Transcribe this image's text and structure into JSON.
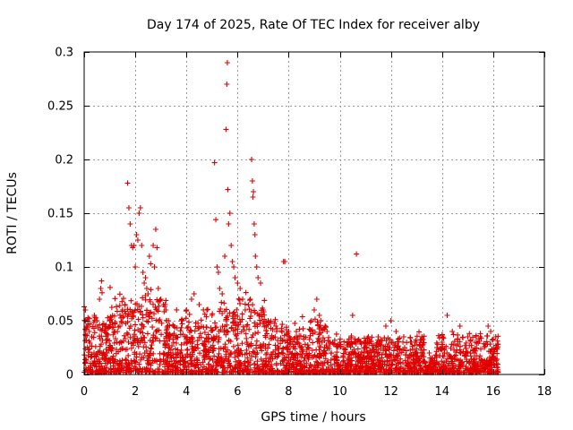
{
  "chart_data": {
    "type": "scatter",
    "title": "Day 174 of 2025, Rate Of TEC Index for receiver alby",
    "xlabel": "GPS time / hours",
    "ylabel": "ROTI / TECUs",
    "xlim": [
      0,
      18
    ],
    "ylim": [
      0,
      0.3
    ],
    "x_ticks": [
      0,
      2,
      4,
      6,
      8,
      10,
      12,
      14,
      16,
      18
    ],
    "y_ticks": [
      0,
      0.05,
      0.1,
      0.15,
      0.2,
      0.25,
      0.3
    ],
    "x_tick_labels": [
      "0",
      "2",
      "4",
      "6",
      "8",
      "10",
      "12",
      "14",
      "16",
      "18"
    ],
    "y_tick_labels": [
      "0",
      "0.05",
      "0.1",
      "0.15",
      "0.2",
      "0.25",
      "0.3"
    ],
    "grid": true,
    "marker": "+",
    "marker_color": "#e00000",
    "data_coverage_hours": [
      0,
      16.2
    ],
    "series": [
      {
        "name": "ROTI",
        "points": [
          [
            0.0,
            0.063
          ],
          [
            0.05,
            0.06
          ],
          [
            0.1,
            0.045
          ],
          [
            0.2,
            0.04
          ],
          [
            0.3,
            0.035
          ],
          [
            0.4,
            0.055
          ],
          [
            0.5,
            0.05
          ],
          [
            0.6,
            0.07
          ],
          [
            0.65,
            0.08
          ],
          [
            0.68,
            0.087
          ],
          [
            0.7,
            0.076
          ],
          [
            0.8,
            0.04
          ],
          [
            1.0,
            0.05
          ],
          [
            1.2,
            0.04
          ],
          [
            1.4,
            0.045
          ],
          [
            1.5,
            0.06
          ],
          [
            1.6,
            0.065
          ],
          [
            1.7,
            0.178
          ],
          [
            1.75,
            0.155
          ],
          [
            1.8,
            0.14
          ],
          [
            1.85,
            0.12
          ],
          [
            1.9,
            0.118
          ],
          [
            1.95,
            0.12
          ],
          [
            2.0,
            0.1
          ],
          [
            2.05,
            0.13
          ],
          [
            2.1,
            0.125
          ],
          [
            2.15,
            0.15
          ],
          [
            2.2,
            0.155
          ],
          [
            2.25,
            0.12
          ],
          [
            2.3,
            0.095
          ],
          [
            2.35,
            0.085
          ],
          [
            2.4,
            0.09
          ],
          [
            2.45,
            0.08
          ],
          [
            2.5,
            0.075
          ],
          [
            2.55,
            0.11
          ],
          [
            2.6,
            0.103
          ],
          [
            2.7,
            0.12
          ],
          [
            2.75,
            0.1
          ],
          [
            2.8,
            0.135
          ],
          [
            2.85,
            0.118
          ],
          [
            2.9,
            0.08
          ],
          [
            3.0,
            0.07
          ],
          [
            3.1,
            0.065
          ],
          [
            3.2,
            0.06
          ],
          [
            3.3,
            0.05
          ],
          [
            3.5,
            0.045
          ],
          [
            3.8,
            0.05
          ],
          [
            4.0,
            0.06
          ],
          [
            4.2,
            0.07
          ],
          [
            4.3,
            0.075
          ],
          [
            4.5,
            0.065
          ],
          [
            4.8,
            0.06
          ],
          [
            5.0,
            0.055
          ],
          [
            5.1,
            0.197
          ],
          [
            5.15,
            0.144
          ],
          [
            5.2,
            0.1
          ],
          [
            5.25,
            0.095
          ],
          [
            5.3,
            0.08
          ],
          [
            5.4,
            0.075
          ],
          [
            5.5,
            0.11
          ],
          [
            5.55,
            0.228
          ],
          [
            5.58,
            0.27
          ],
          [
            5.6,
            0.29
          ],
          [
            5.62,
            0.172
          ],
          [
            5.65,
            0.14
          ],
          [
            5.7,
            0.15
          ],
          [
            5.75,
            0.12
          ],
          [
            5.8,
            0.105
          ],
          [
            5.85,
            0.1
          ],
          [
            5.9,
            0.09
          ],
          [
            6.0,
            0.085
          ],
          [
            6.1,
            0.08
          ],
          [
            6.2,
            0.07
          ],
          [
            6.3,
            0.06
          ],
          [
            6.5,
            0.07
          ],
          [
            6.55,
            0.2
          ],
          [
            6.58,
            0.18
          ],
          [
            6.6,
            0.165
          ],
          [
            6.62,
            0.17
          ],
          [
            6.65,
            0.14
          ],
          [
            6.68,
            0.13
          ],
          [
            6.7,
            0.11
          ],
          [
            6.75,
            0.1
          ],
          [
            6.8,
            0.09
          ],
          [
            6.9,
            0.085
          ],
          [
            7.0,
            0.06
          ],
          [
            7.2,
            0.05
          ],
          [
            7.5,
            0.045
          ],
          [
            7.8,
            0.105
          ],
          [
            7.85,
            0.105
          ],
          [
            8.0,
            0.04
          ],
          [
            8.3,
            0.04
          ],
          [
            8.6,
            0.035
          ],
          [
            9.0,
            0.06
          ],
          [
            9.1,
            0.07
          ],
          [
            9.2,
            0.055
          ],
          [
            9.5,
            0.04
          ],
          [
            10.0,
            0.03
          ],
          [
            10.5,
            0.055
          ],
          [
            10.65,
            0.112
          ],
          [
            10.8,
            0.03
          ],
          [
            11.0,
            0.03
          ],
          [
            11.5,
            0.035
          ],
          [
            11.8,
            0.045
          ],
          [
            12.0,
            0.05
          ],
          [
            12.2,
            0.04
          ],
          [
            12.5,
            0.035
          ],
          [
            12.8,
            0.03
          ],
          [
            13.0,
            0.03
          ],
          [
            13.2,
            0.025
          ],
          [
            13.5,
            0.02
          ],
          [
            13.8,
            0.025
          ],
          [
            14.0,
            0.03
          ],
          [
            14.2,
            0.055
          ],
          [
            14.4,
            0.04
          ],
          [
            14.7,
            0.045
          ],
          [
            15.0,
            0.035
          ],
          [
            15.3,
            0.03
          ],
          [
            15.5,
            0.035
          ],
          [
            15.8,
            0.045
          ],
          [
            15.9,
            0.04
          ],
          [
            16.1,
            0.035
          ]
        ]
      }
    ]
  }
}
